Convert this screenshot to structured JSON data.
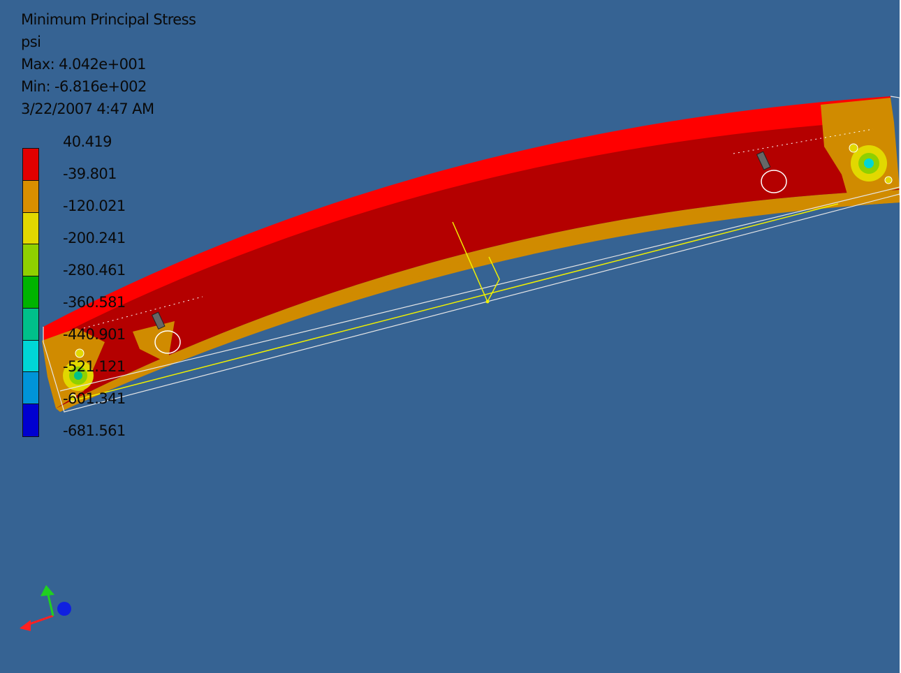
{
  "result": {
    "title": "Minimum Principal Stress",
    "unit": "psi",
    "max_label": "Max: 4.042e+001",
    "min_label": "Min: -6.816e+002",
    "timestamp": "3/22/2007 4:47 AM"
  },
  "legend": {
    "values": [
      "40.419",
      "-39.801",
      "-120.021",
      "-200.241",
      "-280.461",
      "-360.581",
      "-440.901",
      "-521.121",
      "-601.341",
      "-681.561"
    ],
    "colors": [
      "#e20000",
      "#d98f00",
      "#e2d800",
      "#8fd000",
      "#00b400",
      "#00c08a",
      "#00d6d6",
      "#0094d8",
      "#0000d0"
    ]
  },
  "scene_colors": {
    "background": "#366393",
    "beam_top": "#ff0000",
    "beam_side": "#b40000",
    "beam_bottom": "#d08b00",
    "wireframe": "#e6e6e6",
    "reference": "#f0f000"
  },
  "triad": {
    "icons": [
      "x-axis-arrow-icon",
      "y-axis-arrow-icon",
      "z-axis-dot-icon"
    ]
  }
}
